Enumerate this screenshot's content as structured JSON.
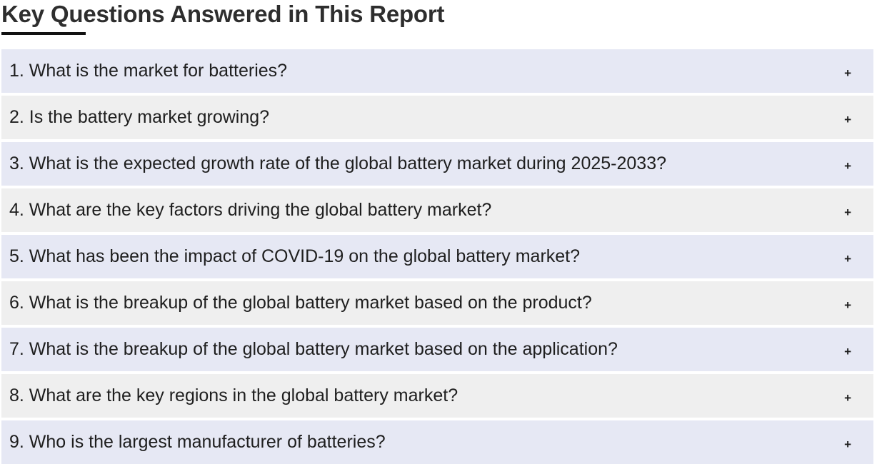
{
  "header": {
    "title": "Key Questions Answered in This Report"
  },
  "faq": {
    "toggle_symbol": "+",
    "items": [
      {
        "question": "1. What is the market for batteries?"
      },
      {
        "question": "2. Is the battery market growing?"
      },
      {
        "question": "3. What is the expected growth rate of the global battery market during 2025-2033?"
      },
      {
        "question": "4. What are the key factors driving the global battery market?"
      },
      {
        "question": "5. What has been the impact of COVID-19 on the global battery market?"
      },
      {
        "question": "6. What is the breakup of the global battery market based on the product?"
      },
      {
        "question": "7. What is the breakup of the global battery market based on the application?"
      },
      {
        "question": "8. What are the key regions in the global battery market?"
      },
      {
        "question": "9. Who is the largest manufacturer of batteries?"
      }
    ]
  },
  "colors": {
    "row_odd": "#e6e8f4",
    "row_even": "#efefef",
    "title": "#2e2e2e",
    "underline": "#111111"
  }
}
